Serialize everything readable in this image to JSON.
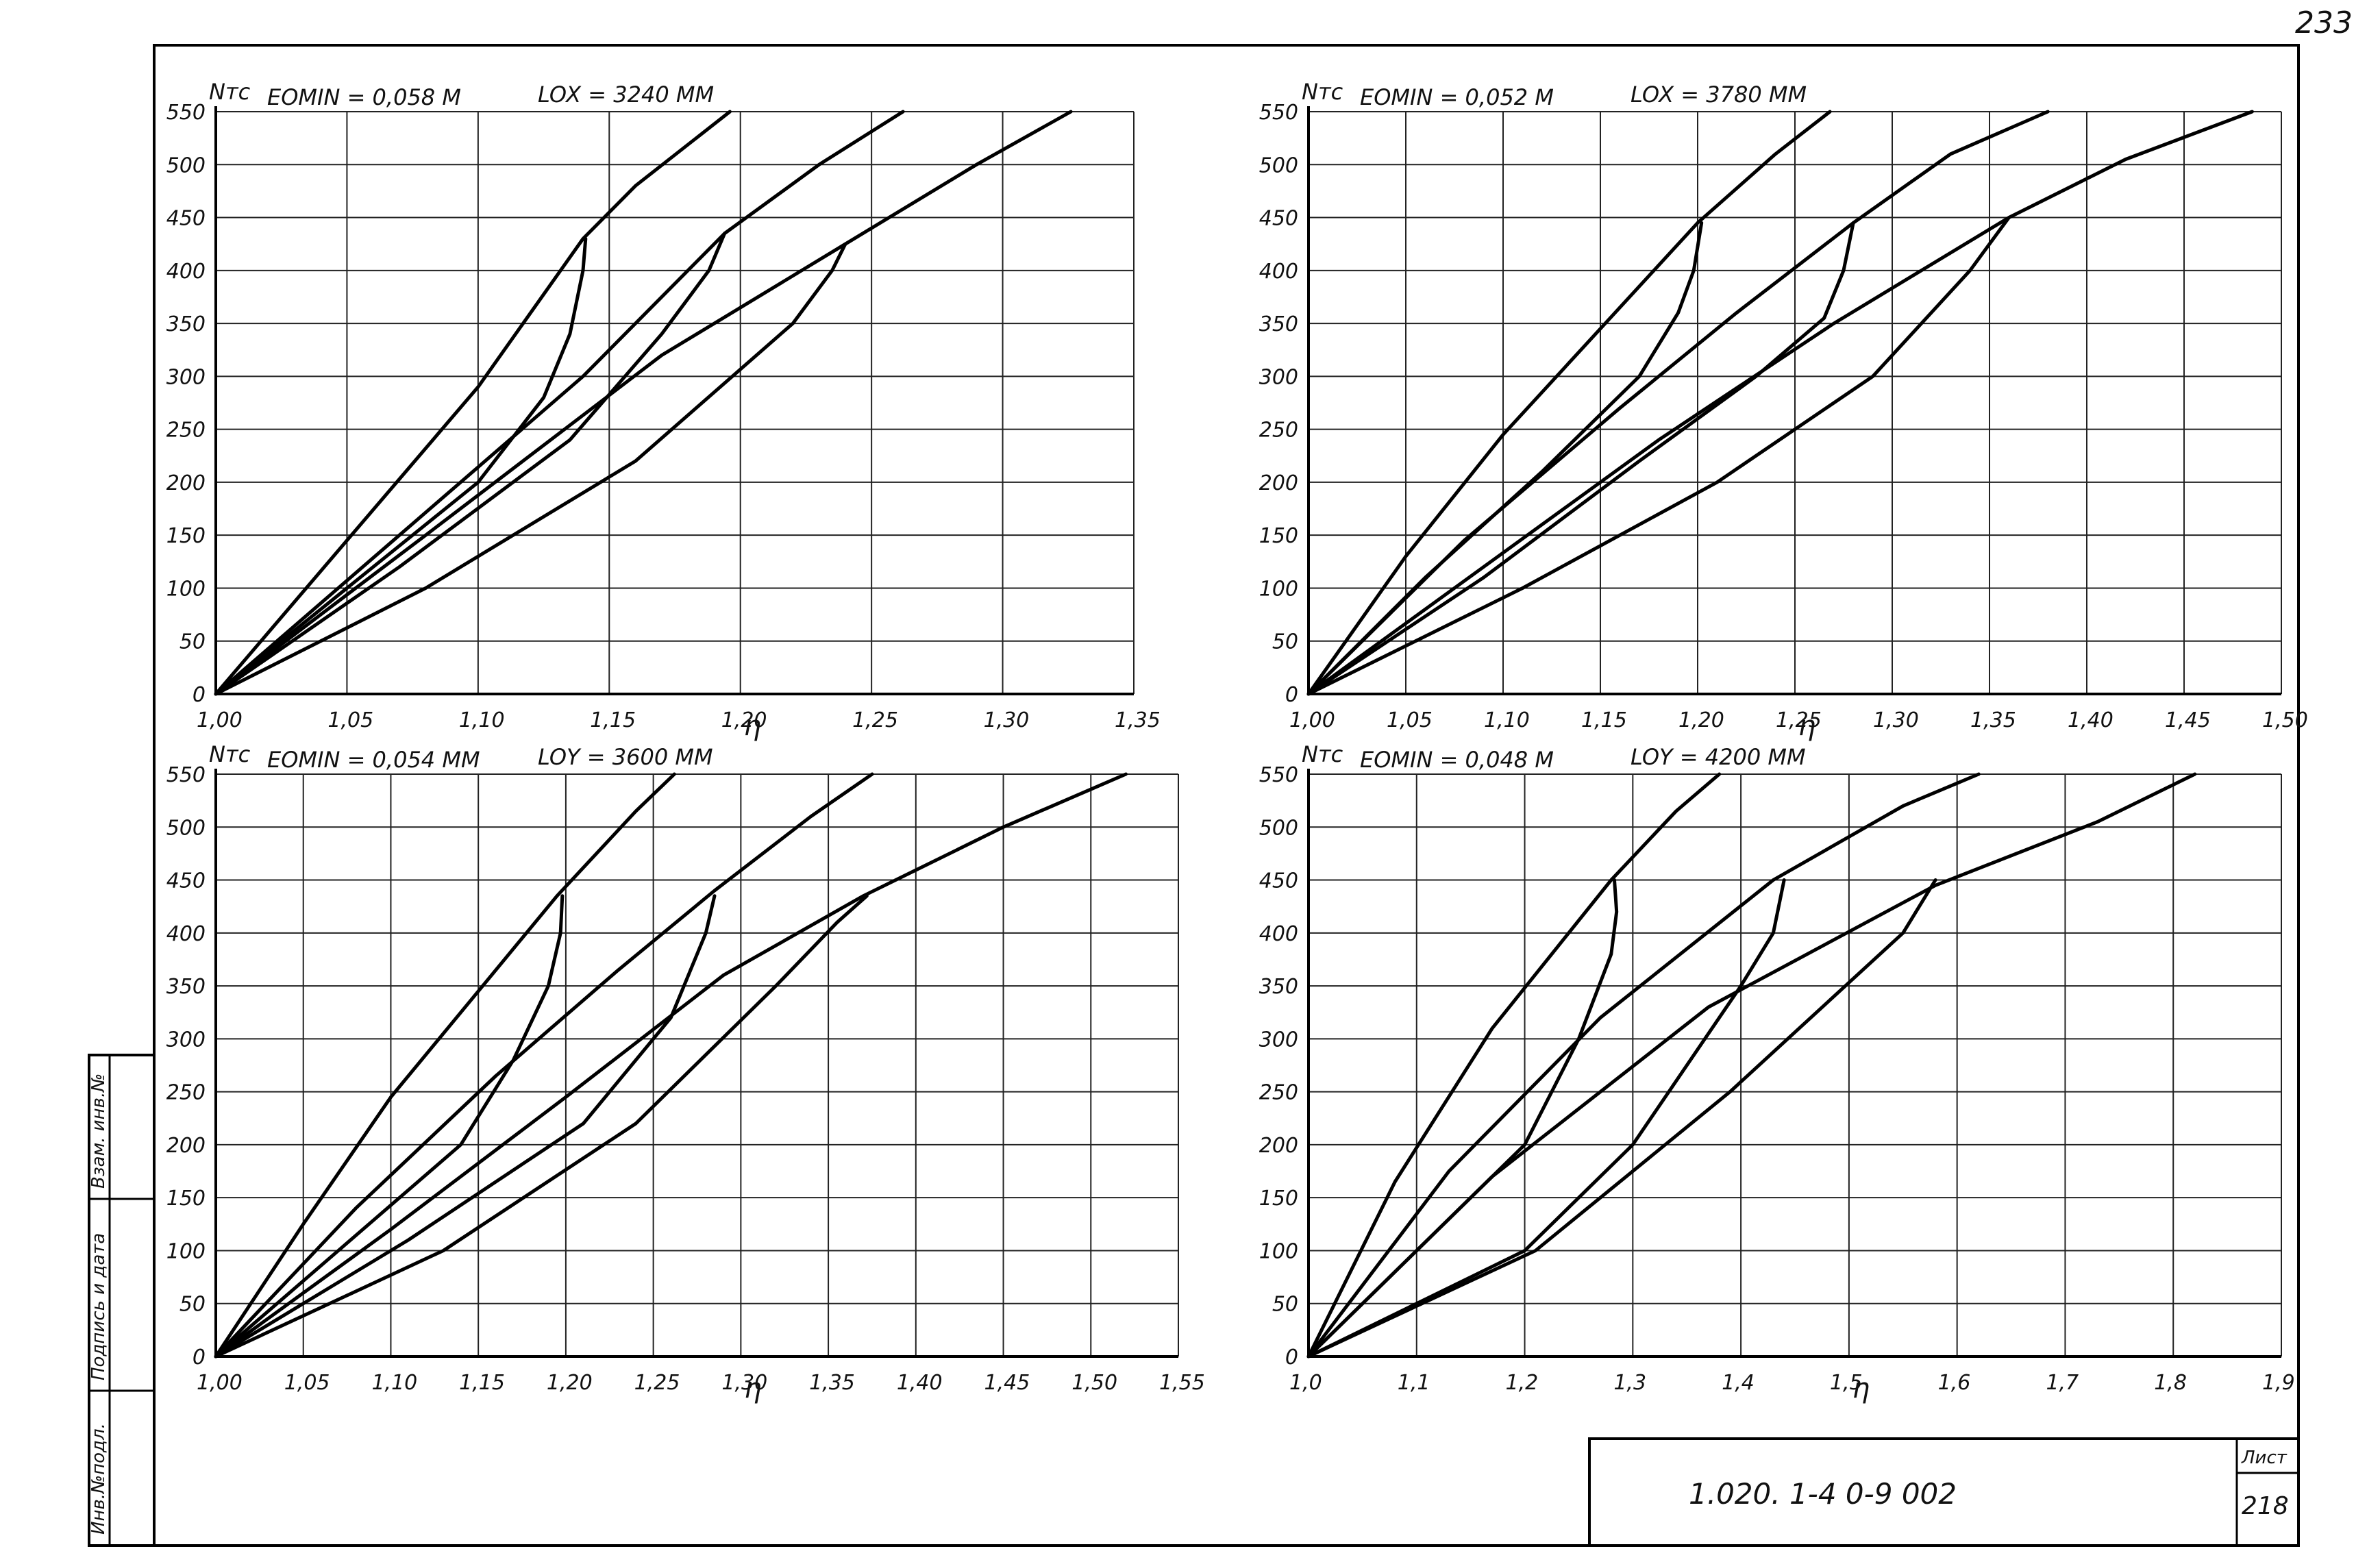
{
  "sheet": {
    "page_number": "233",
    "doc_code": "1.020. 1-4   0-9  002",
    "sheet_label": "Лист",
    "sheet_number": "218",
    "side_stamp": [
      "Инв.№подл.",
      "Подпись и дата",
      "Взам. инв.№"
    ]
  },
  "chart_data": [
    {
      "type": "line",
      "ylabel": "Nтс",
      "xlabel": "ƞ",
      "eomin_label": "EOMIN = 0,058 М",
      "length_label": "LOX = 3240 ММ",
      "xlim": [
        1.0,
        1.35
      ],
      "ylim": [
        0,
        550
      ],
      "xticks": [
        1.0,
        1.05,
        1.1,
        1.15,
        1.2,
        1.25,
        1.3,
        1.35
      ],
      "xtick_labels": [
        "1,00",
        "1,05",
        "1,10",
        "1,15",
        "1,20",
        "1,25",
        "1,30",
        "1,35"
      ],
      "yticks": [
        0,
        50,
        100,
        150,
        200,
        250,
        300,
        350,
        400,
        450,
        500,
        550
      ],
      "ytick_labels": [
        "0",
        "50",
        "100",
        "150",
        "200",
        "250",
        "300",
        "350",
        "400",
        "450",
        "500",
        "550"
      ],
      "grid": true,
      "series": [
        {
          "x": [
            1.0,
            1.05,
            1.1,
            1.14,
            1.16,
            1.196
          ],
          "y": [
            0,
            145,
            290,
            430,
            480,
            550
          ]
        },
        {
          "x": [
            1.0,
            1.07,
            1.14,
            1.194,
            1.23,
            1.262
          ],
          "y": [
            0,
            150,
            300,
            435,
            500,
            550
          ]
        },
        {
          "x": [
            1.0,
            1.08,
            1.17,
            1.24,
            1.29,
            1.326
          ],
          "y": [
            0,
            150,
            320,
            425,
            500,
            550
          ]
        },
        {
          "x": [
            1.0,
            1.05,
            1.1,
            1.125,
            1.135,
            1.14,
            1.141
          ],
          "y": [
            0,
            100,
            200,
            280,
            340,
            400,
            430
          ]
        },
        {
          "x": [
            1.0,
            1.07,
            1.135,
            1.17,
            1.188,
            1.194
          ],
          "y": [
            0,
            120,
            240,
            340,
            400,
            435
          ]
        },
        {
          "x": [
            1.0,
            1.08,
            1.16,
            1.22,
            1.235,
            1.24
          ],
          "y": [
            0,
            100,
            220,
            350,
            400,
            425
          ]
        }
      ]
    },
    {
      "type": "line",
      "ylabel": "Nтс",
      "xlabel": "ƞ",
      "eomin_label": "EOMIN = 0,052 М",
      "length_label": "LOX = 3780 ММ",
      "xlim": [
        1.0,
        1.5
      ],
      "ylim": [
        0,
        550
      ],
      "xticks": [
        1.0,
        1.05,
        1.1,
        1.15,
        1.2,
        1.25,
        1.3,
        1.35,
        1.4,
        1.45,
        1.5
      ],
      "xtick_labels": [
        "1,00",
        "1,05",
        "1,10",
        "1,15",
        "1,20",
        "1,25",
        "1,30",
        "1,35",
        "1,40",
        "1,45",
        "1,50"
      ],
      "yticks": [
        0,
        50,
        100,
        150,
        200,
        250,
        300,
        350,
        400,
        450,
        500,
        550
      ],
      "ytick_labels": [
        "0",
        "50",
        "100",
        "150",
        "200",
        "250",
        "300",
        "350",
        "400",
        "450",
        "500",
        "550"
      ],
      "grid": true,
      "series": [
        {
          "x": [
            1.0,
            1.05,
            1.1,
            1.15,
            1.2,
            1.24,
            1.268
          ],
          "y": [
            0,
            130,
            245,
            345,
            445,
            510,
            550
          ]
        },
        {
          "x": [
            1.0,
            1.08,
            1.16,
            1.22,
            1.28,
            1.33,
            1.38
          ],
          "y": [
            0,
            145,
            270,
            360,
            445,
            510,
            550
          ]
        },
        {
          "x": [
            1.0,
            1.09,
            1.18,
            1.27,
            1.36,
            1.42,
            1.485
          ],
          "y": [
            0,
            120,
            240,
            350,
            450,
            505,
            550
          ]
        },
        {
          "x": [
            1.0,
            1.06,
            1.12,
            1.17,
            1.19,
            1.198,
            1.202
          ],
          "y": [
            0,
            110,
            210,
            300,
            360,
            400,
            445
          ]
        },
        {
          "x": [
            1.0,
            1.09,
            1.17,
            1.23,
            1.265,
            1.275,
            1.28
          ],
          "y": [
            0,
            110,
            220,
            300,
            355,
            400,
            445
          ]
        },
        {
          "x": [
            1.0,
            1.11,
            1.21,
            1.29,
            1.34,
            1.36
          ],
          "y": [
            0,
            100,
            200,
            300,
            400,
            450
          ]
        }
      ]
    },
    {
      "type": "line",
      "ylabel": "Nтс",
      "xlabel": "ƞ",
      "eomin_label": "EOMIN = 0,054 ММ",
      "length_label": "LOY = 3600 ММ",
      "xlim": [
        1.0,
        1.55
      ],
      "ylim": [
        0,
        550
      ],
      "xticks": [
        1.0,
        1.05,
        1.1,
        1.15,
        1.2,
        1.25,
        1.3,
        1.35,
        1.4,
        1.45,
        1.5,
        1.55
      ],
      "xtick_labels": [
        "1,00",
        "1,05",
        "1,10",
        "1,15",
        "1,20",
        "1,25",
        "1,30",
        "1,35",
        "1,40",
        "1,45",
        "1,50",
        "1,55"
      ],
      "yticks": [
        0,
        50,
        100,
        150,
        200,
        250,
        300,
        350,
        400,
        450,
        500,
        550
      ],
      "ytick_labels": [
        "0",
        "50",
        "100",
        "150",
        "200",
        "250",
        "300",
        "350",
        "400",
        "450",
        "500",
        "550"
      ],
      "grid": true,
      "series": [
        {
          "x": [
            1.0,
            1.05,
            1.1,
            1.15,
            1.195,
            1.24,
            1.262
          ],
          "y": [
            0,
            125,
            245,
            345,
            435,
            515,
            550
          ]
        },
        {
          "x": [
            1.0,
            1.08,
            1.16,
            1.23,
            1.285,
            1.34,
            1.375
          ],
          "y": [
            0,
            140,
            265,
            365,
            440,
            510,
            550
          ]
        },
        {
          "x": [
            1.0,
            1.1,
            1.2,
            1.29,
            1.37,
            1.45,
            1.52
          ],
          "y": [
            0,
            120,
            245,
            360,
            435,
            500,
            550
          ]
        },
        {
          "x": [
            1.0,
            1.07,
            1.14,
            1.17,
            1.19,
            1.197,
            1.198
          ],
          "y": [
            0,
            100,
            200,
            280,
            350,
            400,
            435
          ]
        },
        {
          "x": [
            1.0,
            1.11,
            1.21,
            1.26,
            1.28,
            1.285
          ],
          "y": [
            0,
            110,
            220,
            320,
            400,
            435
          ]
        },
        {
          "x": [
            1.0,
            1.13,
            1.24,
            1.32,
            1.355,
            1.372
          ],
          "y": [
            0,
            100,
            220,
            350,
            410,
            435
          ]
        }
      ]
    },
    {
      "type": "line",
      "ylabel": "Nтс",
      "xlabel": "ƞ",
      "eomin_label": "EOMIN = 0,048 М",
      "length_label": "LOY = 4200 ММ",
      "xlim": [
        1.0,
        1.9
      ],
      "ylim": [
        0,
        550
      ],
      "xticks": [
        1.0,
        1.1,
        1.2,
        1.3,
        1.4,
        1.5,
        1.6,
        1.7,
        1.8,
        1.9
      ],
      "xtick_labels": [
        "1,0",
        "1,1",
        "1,2",
        "1,3",
        "1,4",
        "1,5",
        "1,6",
        "1,7",
        "1,8",
        "1,9"
      ],
      "yticks": [
        0,
        50,
        100,
        150,
        200,
        250,
        300,
        350,
        400,
        450,
        500,
        550
      ],
      "ytick_labels": [
        "0",
        "50",
        "100",
        "150",
        "200",
        "250",
        "300",
        "350",
        "400",
        "450",
        "500",
        "550"
      ],
      "grid": true,
      "series": [
        {
          "x": [
            1.0,
            1.08,
            1.17,
            1.28,
            1.34,
            1.38
          ],
          "y": [
            0,
            165,
            310,
            450,
            515,
            550
          ]
        },
        {
          "x": [
            1.0,
            1.13,
            1.27,
            1.43,
            1.55,
            1.62
          ],
          "y": [
            0,
            175,
            320,
            450,
            520,
            550
          ]
        },
        {
          "x": [
            1.0,
            1.17,
            1.37,
            1.58,
            1.73,
            1.82
          ],
          "y": [
            0,
            170,
            330,
            445,
            505,
            550
          ]
        },
        {
          "x": [
            1.0,
            1.1,
            1.2,
            1.25,
            1.28,
            1.285,
            1.283
          ],
          "y": [
            0,
            100,
            200,
            300,
            380,
            420,
            450
          ]
        },
        {
          "x": [
            1.0,
            1.2,
            1.3,
            1.4,
            1.43,
            1.44
          ],
          "y": [
            0,
            100,
            200,
            350,
            400,
            450
          ]
        },
        {
          "x": [
            1.0,
            1.21,
            1.39,
            1.55,
            1.58
          ],
          "y": [
            0,
            100,
            250,
            400,
            450
          ]
        }
      ]
    }
  ]
}
